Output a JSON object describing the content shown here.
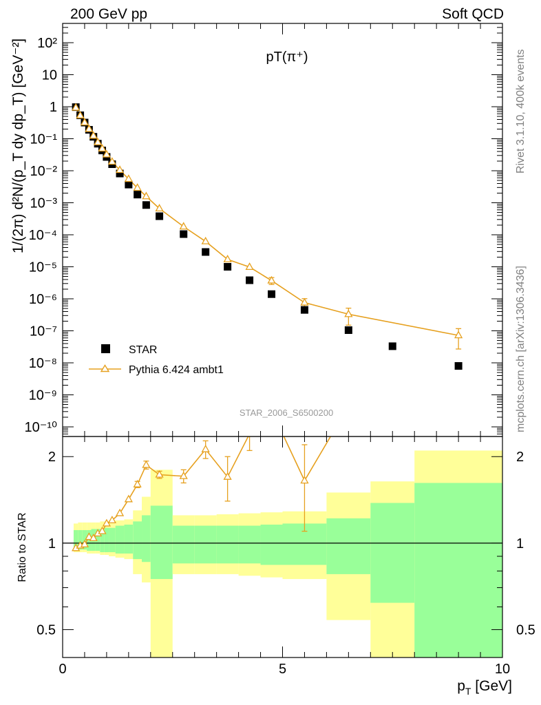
{
  "header": {
    "left": "200 GeV pp",
    "right": "Soft QCD"
  },
  "side_text": {
    "rivet": "Rivet 3.1.10,  400k events",
    "mcplots": "mcplots.cern.ch [arXiv:1306.3436]"
  },
  "analysis_label": "STAR_2006_S6500200",
  "chart_data": [
    {
      "type": "scatter",
      "title": "pT(π⁺)",
      "xlabel": "p_T [GeV]",
      "ylabel": "1/(2π) d²N/(p_T dy dp_T) [GeV⁻²]",
      "xlim": [
        0,
        10
      ],
      "ylim": [
        5e-11,
        400
      ],
      "yscale": "log",
      "ytick_labels": [
        "10⁻¹⁰",
        "10⁻⁹",
        "10⁻⁸",
        "10⁻⁷",
        "10⁻⁶",
        "10⁻⁵",
        "10⁻⁴",
        "10⁻³",
        "10⁻²",
        "10⁻¹",
        "1",
        "10",
        "10²"
      ],
      "legend_position": "lower-left",
      "series": [
        {
          "name": "STAR",
          "color": "#000000",
          "marker": "square",
          "x": [
            0.3,
            0.4,
            0.5,
            0.6,
            0.7,
            0.8,
            0.9,
            1.0,
            1.125,
            1.3,
            1.5,
            1.7,
            1.9,
            2.2,
            2.75,
            3.25,
            3.75,
            4.25,
            4.75,
            5.5,
            6.5,
            7.5,
            9.0
          ],
          "y": [
            0.97,
            0.54,
            0.32,
            0.19,
            0.115,
            0.07,
            0.043,
            0.027,
            0.016,
            0.0082,
            0.0037,
            0.0018,
            0.00085,
            0.00038,
            0.000105,
            2.9e-05,
            1e-05,
            3.8e-06,
            1.4e-06,
            4.5e-07,
            1.05e-07,
            3.3e-08,
            8e-09
          ]
        },
        {
          "name": "Pythia 6.424 ambt1",
          "color": "#e6a01e",
          "marker": "open-triangle",
          "x": [
            0.3,
            0.4,
            0.5,
            0.6,
            0.7,
            0.8,
            0.9,
            1.0,
            1.125,
            1.3,
            1.5,
            1.7,
            1.9,
            2.2,
            2.75,
            3.25,
            3.75,
            4.25,
            4.75,
            5.5,
            6.5,
            9.0
          ],
          "y": [
            0.93,
            0.53,
            0.32,
            0.2,
            0.123,
            0.077,
            0.049,
            0.032,
            0.019,
            0.0105,
            0.0055,
            0.0029,
            0.00158,
            0.00066,
            0.00018,
            6.2e-05,
            1.7e-05,
            9.8e-06,
            3.7e-06,
            7.6e-07,
            3.3e-07,
            7.2e-08
          ],
          "err": [
            0,
            0,
            0,
            0,
            0,
            0,
            0,
            0,
            0,
            0,
            0,
            0,
            0,
            0,
            0,
            0,
            0,
            0,
            9e-07,
            2.5e-07,
            1.8e-07,
            4.5e-08
          ]
        }
      ]
    },
    {
      "type": "line",
      "xlabel": "p_T [GeV]",
      "ylabel": "Ratio to STAR",
      "xlim": [
        0,
        10
      ],
      "ylim": [
        0.4,
        2.35
      ],
      "yscale": "log",
      "xticks": [
        0,
        5,
        10
      ],
      "yticks": [
        0.5,
        1,
        2
      ],
      "reference_line": 1,
      "band_colors": {
        "inner": "#99ff99",
        "outer": "#ffff99"
      },
      "bands": [
        {
          "x0": 0.25,
          "x1": 0.35,
          "inner": [
            0.95,
            1.11
          ],
          "outer": [
            0.93,
            1.17
          ]
        },
        {
          "x0": 0.35,
          "x1": 0.45,
          "inner": [
            0.95,
            1.11
          ],
          "outer": [
            0.93,
            1.18
          ]
        },
        {
          "x0": 0.45,
          "x1": 0.55,
          "inner": [
            0.95,
            1.11
          ],
          "outer": [
            0.93,
            1.18
          ]
        },
        {
          "x0": 0.55,
          "x1": 0.65,
          "inner": [
            0.94,
            1.11
          ],
          "outer": [
            0.92,
            1.18
          ]
        },
        {
          "x0": 0.65,
          "x1": 0.75,
          "inner": [
            0.94,
            1.12
          ],
          "outer": [
            0.92,
            1.18
          ]
        },
        {
          "x0": 0.75,
          "x1": 0.85,
          "inner": [
            0.94,
            1.12
          ],
          "outer": [
            0.92,
            1.18
          ]
        },
        {
          "x0": 0.85,
          "x1": 0.95,
          "inner": [
            0.93,
            1.12
          ],
          "outer": [
            0.91,
            1.19
          ]
        },
        {
          "x0": 0.95,
          "x1": 1.05,
          "inner": [
            0.93,
            1.13
          ],
          "outer": [
            0.91,
            1.19
          ]
        },
        {
          "x0": 1.05,
          "x1": 1.2,
          "inner": [
            0.93,
            1.13
          ],
          "outer": [
            0.9,
            1.2
          ]
        },
        {
          "x0": 1.2,
          "x1": 1.4,
          "inner": [
            0.92,
            1.15
          ],
          "outer": [
            0.89,
            1.2
          ]
        },
        {
          "x0": 1.4,
          "x1": 1.6,
          "inner": [
            0.92,
            1.16
          ],
          "outer": [
            0.88,
            1.21
          ]
        },
        {
          "x0": 1.6,
          "x1": 1.8,
          "inner": [
            0.88,
            1.19
          ],
          "outer": [
            0.78,
            1.3
          ]
        },
        {
          "x0": 1.8,
          "x1": 2.0,
          "inner": [
            0.86,
            1.25
          ],
          "outer": [
            0.73,
            1.45
          ]
        },
        {
          "x0": 2.0,
          "x1": 2.5,
          "inner": [
            0.75,
            1.35
          ],
          "outer": [
            0.37,
            1.8
          ]
        },
        {
          "x0": 2.5,
          "x1": 3.0,
          "inner": [
            0.85,
            1.15
          ],
          "outer": [
            0.78,
            1.25
          ]
        },
        {
          "x0": 3.0,
          "x1": 3.5,
          "inner": [
            0.85,
            1.15
          ],
          "outer": [
            0.78,
            1.25
          ]
        },
        {
          "x0": 3.5,
          "x1": 4.0,
          "inner": [
            0.85,
            1.15
          ],
          "outer": [
            0.78,
            1.26
          ]
        },
        {
          "x0": 4.0,
          "x1": 4.5,
          "inner": [
            0.85,
            1.15
          ],
          "outer": [
            0.77,
            1.27
          ]
        },
        {
          "x0": 4.5,
          "x1": 5.0,
          "inner": [
            0.84,
            1.16
          ],
          "outer": [
            0.76,
            1.28
          ]
        },
        {
          "x0": 5.0,
          "x1": 6.0,
          "inner": [
            0.84,
            1.17
          ],
          "outer": [
            0.75,
            1.29
          ]
        },
        {
          "x0": 6.0,
          "x1": 7.0,
          "inner": [
            0.78,
            1.22
          ],
          "outer": [
            0.54,
            1.5
          ]
        },
        {
          "x0": 7.0,
          "x1": 8.0,
          "inner": [
            0.62,
            1.38
          ],
          "outer": [
            0.4,
            1.64
          ]
        },
        {
          "x0": 8.0,
          "x1": 10.0,
          "inner": [
            0.4,
            1.62
          ],
          "outer": [
            0.4,
            2.1
          ]
        }
      ],
      "series": [
        {
          "name": "Pythia 6.424 ambt1",
          "color": "#e6a01e",
          "marker": "open-triangle",
          "x": [
            0.3,
            0.4,
            0.5,
            0.6,
            0.7,
            0.8,
            0.9,
            1.0,
            1.125,
            1.3,
            1.5,
            1.7,
            1.9,
            2.2,
            2.75,
            3.25,
            3.75,
            4.25,
            4.75,
            5.5,
            6.5
          ],
          "y": [
            0.96,
            0.98,
            0.99,
            1.05,
            1.04,
            1.08,
            1.1,
            1.17,
            1.2,
            1.27,
            1.42,
            1.6,
            1.87,
            1.73,
            1.71,
            2.12,
            1.7,
            2.4,
            2.9,
            1.65,
            3.0
          ],
          "err": [
            0,
            0,
            0,
            0,
            0,
            0,
            0,
            0,
            0,
            0,
            0,
            0.04,
            0.06,
            0.05,
            0.09,
            0.15,
            0.3,
            0.3,
            0,
            0.55,
            0
          ]
        }
      ]
    }
  ]
}
